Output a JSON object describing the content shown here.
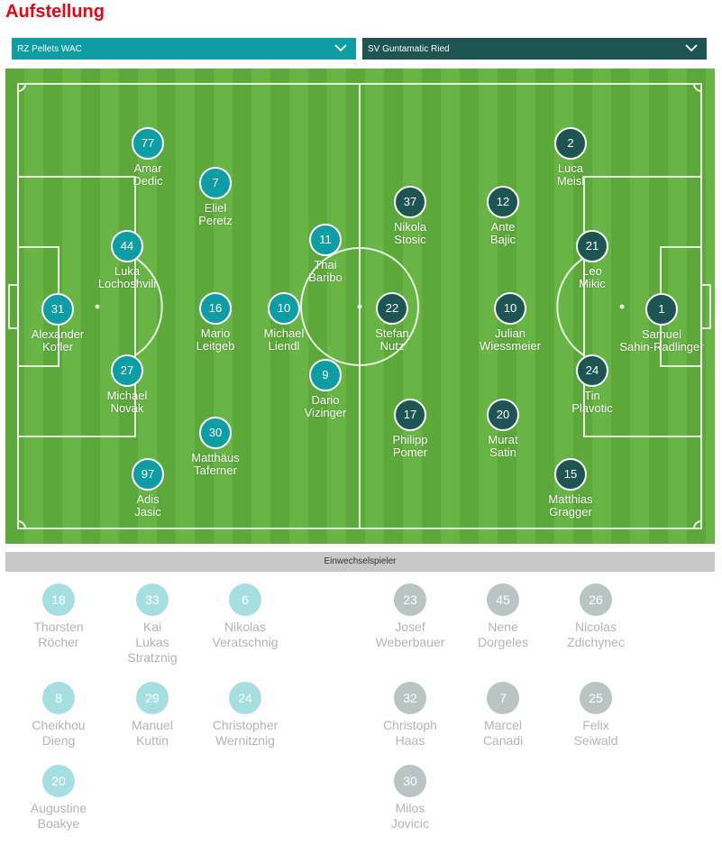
{
  "title": "Aufstellung",
  "colors": {
    "home": "#0e9da3",
    "away": "#1e5452",
    "home_sub": "#a6dfe1",
    "away_sub": "#b9c4c3",
    "accent": "#e30613"
  },
  "team_select": {
    "home": {
      "label": "RZ Pellets WAC",
      "icon": "chevron-down-icon"
    },
    "away": {
      "label": "SV Guntamatic Ried",
      "icon": "chevron-down-icon"
    }
  },
  "lineup": {
    "home": [
      {
        "number": "31",
        "first": "Alexander",
        "last": "Kofler"
      },
      {
        "number": "44",
        "first": "Luka",
        "last": "Lochoshvili"
      },
      {
        "number": "27",
        "first": "Michael",
        "last": "Novak"
      },
      {
        "number": "77",
        "first": "Amar",
        "last": "Dedic"
      },
      {
        "number": "97",
        "first": "Adis",
        "last": "Jasic"
      },
      {
        "number": "7",
        "first": "Eliel",
        "last": "Peretz"
      },
      {
        "number": "16",
        "first": "Mario",
        "last": "Leitgeb"
      },
      {
        "number": "30",
        "first": "Matthäus",
        "last": "Taferner"
      },
      {
        "number": "10",
        "first": "Michael",
        "last": "Liendl"
      },
      {
        "number": "11",
        "first": "Thai",
        "last": "Baribo"
      },
      {
        "number": "9",
        "first": "Dario",
        "last": "Vizinger"
      }
    ],
    "away": [
      {
        "number": "1",
        "first": "Samuel",
        "last": "Sahin-Radlinger"
      },
      {
        "number": "21",
        "first": "Leo",
        "last": "Mikic"
      },
      {
        "number": "24",
        "first": "Tin",
        "last": "Plavotic"
      },
      {
        "number": "2",
        "first": "Luca",
        "last": "Meisl"
      },
      {
        "number": "15",
        "first": "Matthias",
        "last": "Gragger"
      },
      {
        "number": "12",
        "first": "Ante",
        "last": "Bajic"
      },
      {
        "number": "10",
        "first": "Julian",
        "last": "Wiessmeier"
      },
      {
        "number": "20",
        "first": "Murat",
        "last": "Satin"
      },
      {
        "number": "37",
        "first": "Nikola",
        "last": "Stosic"
      },
      {
        "number": "22",
        "first": "Stefan",
        "last": "Nutz"
      },
      {
        "number": "17",
        "first": "Philipp",
        "last": "Pomer"
      }
    ]
  },
  "subs_label": "Einwechselspieler",
  "subs": {
    "home": [
      {
        "number": "18",
        "lines": [
          "Thorsten",
          "Röcher"
        ]
      },
      {
        "number": "33",
        "lines": [
          "Kai",
          "Lukas",
          "Stratznig"
        ]
      },
      {
        "number": "6",
        "lines": [
          "Nikolas",
          "Veratschnig"
        ]
      },
      {
        "number": "8",
        "lines": [
          "Cheikhou",
          "Dieng"
        ]
      },
      {
        "number": "29",
        "lines": [
          "Manuel",
          "Kuttin"
        ]
      },
      {
        "number": "24",
        "lines": [
          "Christopher",
          "Wernitznig"
        ]
      },
      {
        "number": "20",
        "lines": [
          "Augustine",
          "Boakye"
        ]
      }
    ],
    "away": [
      {
        "number": "23",
        "lines": [
          "Josef",
          "Weberbauer"
        ]
      },
      {
        "number": "45",
        "lines": [
          "Nene",
          "Dorgeles"
        ]
      },
      {
        "number": "26",
        "lines": [
          "Nicolas",
          "Zdichynec"
        ]
      },
      {
        "number": "32",
        "lines": [
          "Christoph",
          "Haas"
        ]
      },
      {
        "number": "7",
        "lines": [
          "Marcel",
          "Canadi"
        ]
      },
      {
        "number": "25",
        "lines": [
          "Felix",
          "Seiwald"
        ]
      },
      {
        "number": "30",
        "lines": [
          "Milos",
          "Jovicic"
        ]
      }
    ]
  }
}
